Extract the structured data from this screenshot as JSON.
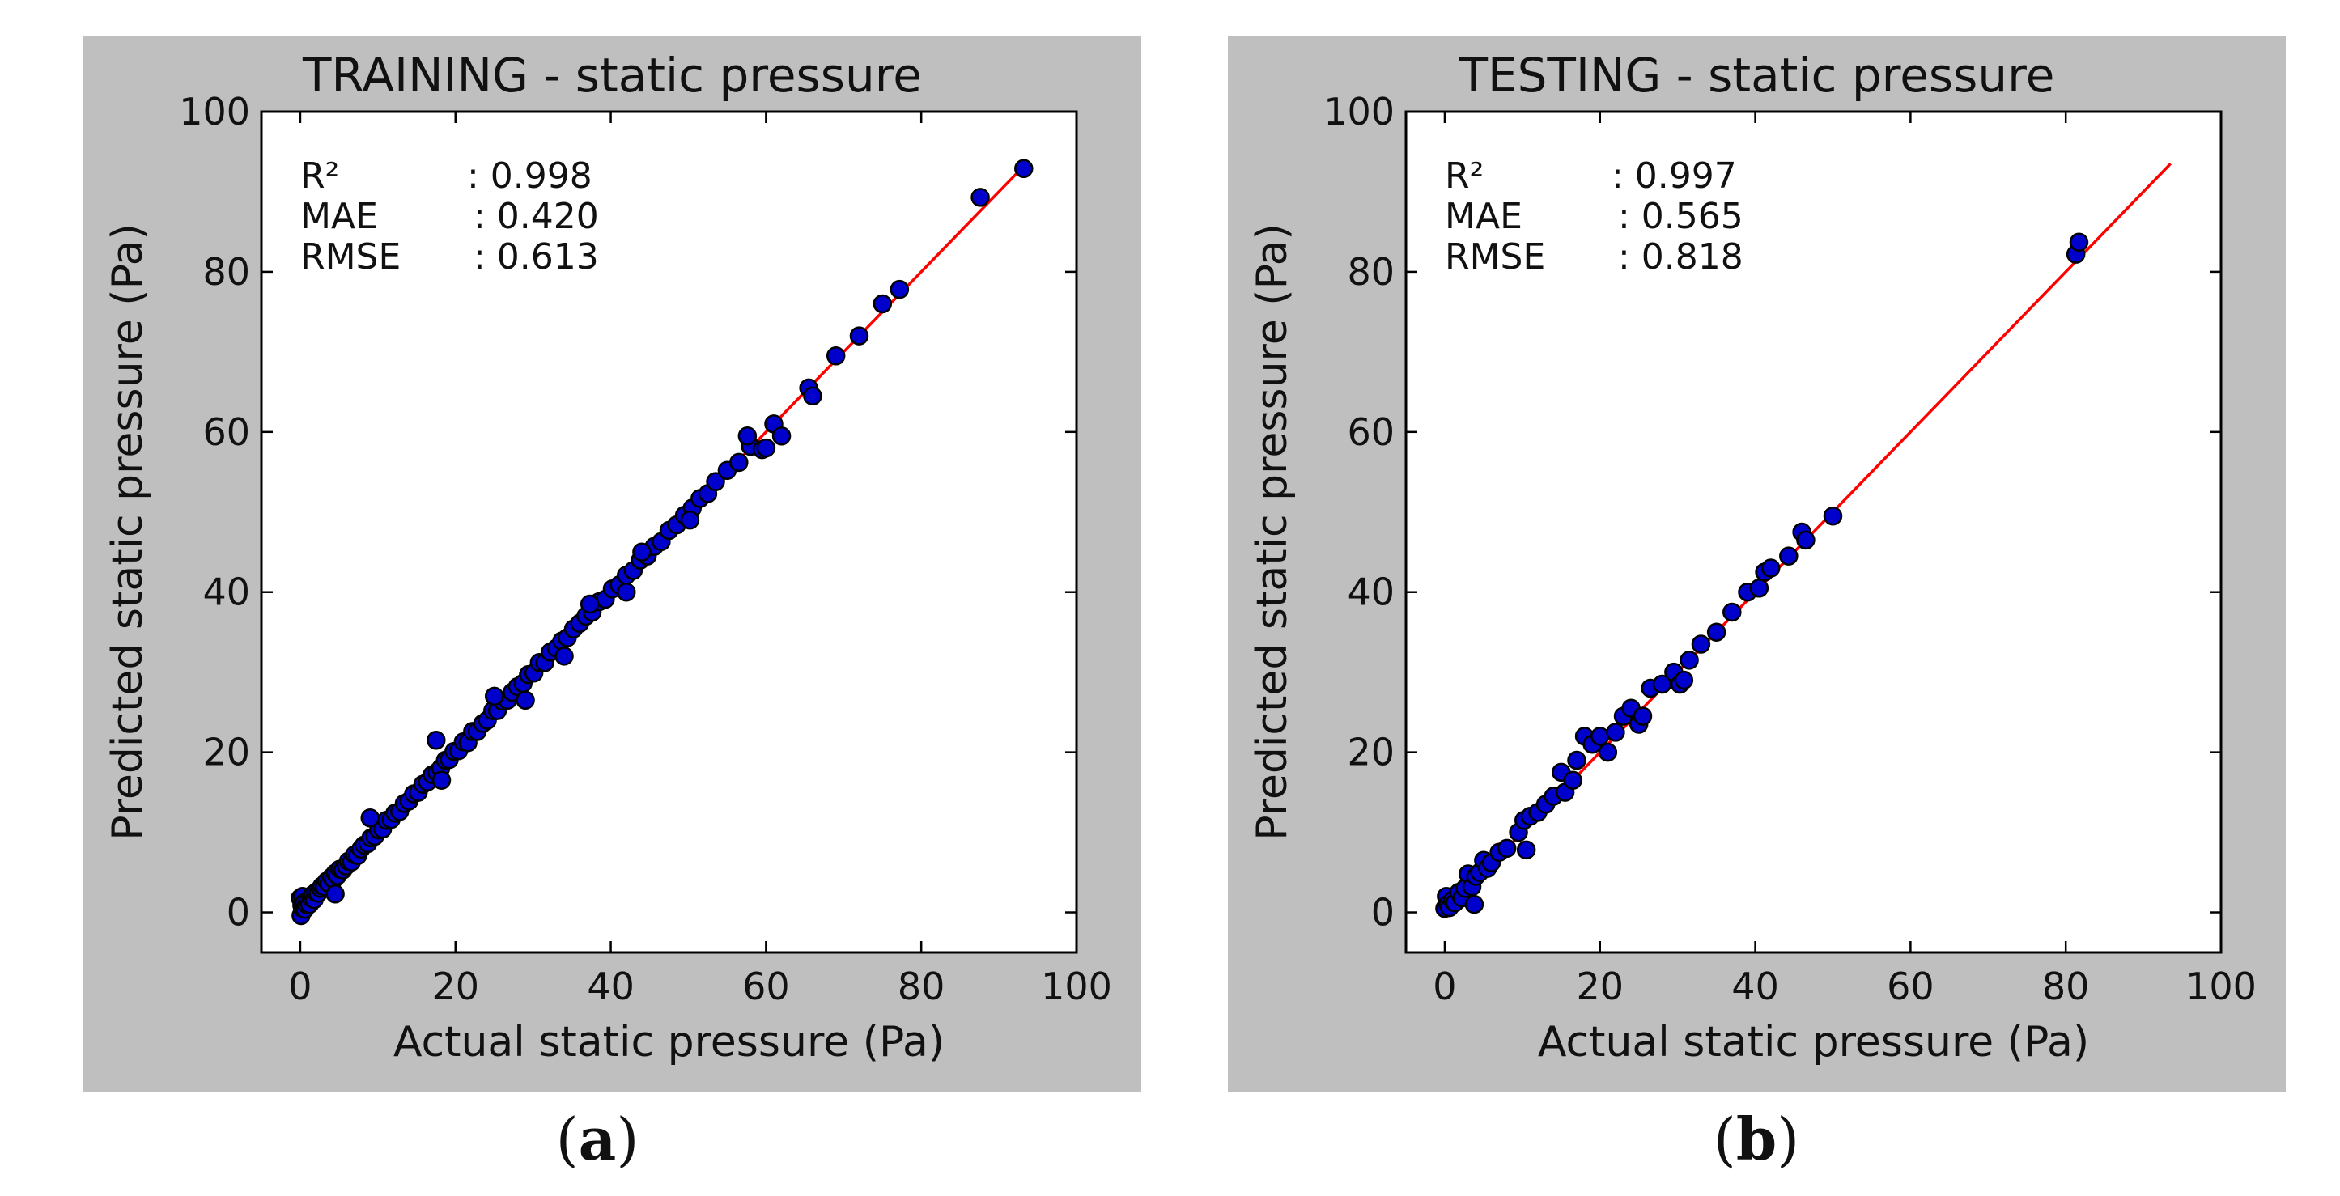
{
  "chart_data": [
    {
      "panel": "a",
      "type": "scatter",
      "title": "TRAINING - static pressure",
      "xlabel": "Actual static pressure (Pa)",
      "ylabel": "Predicted static pressure (Pa)",
      "xlim": [
        -5,
        100
      ],
      "ylim": [
        -5,
        100
      ],
      "xticks": [
        0,
        20,
        40,
        60,
        80,
        100
      ],
      "yticks": [
        0,
        20,
        40,
        60,
        80,
        100
      ],
      "grid": false,
      "fit_line": {
        "x": [
          0,
          93.2
        ],
        "y": [
          0,
          93.2
        ],
        "color": "#ff0000"
      },
      "marker_color": "#0000cc",
      "stats": [
        {
          "label": "R²",
          "value": ":  0.998"
        },
        {
          "label": "MAE",
          "value": ":  0.420"
        },
        {
          "label": "RMSE",
          "value": ":  0.613"
        }
      ],
      "points": {
        "x": [
          0.0,
          0.1,
          0.2,
          0.3,
          0.3,
          0.5,
          0.6,
          0.8,
          1.0,
          1.2,
          1.4,
          1.6,
          1.8,
          2.0,
          2.3,
          2.6,
          2.8,
          3.1,
          3.4,
          3.7,
          4.0,
          4.3,
          4.5,
          4.8,
          5.1,
          5.5,
          5.9,
          6.2,
          6.6,
          7.0,
          7.4,
          7.8,
          8.2,
          8.7,
          9.1,
          9.6,
          10.1,
          10.6,
          11.1,
          11.7,
          12.2,
          12.8,
          13.4,
          14.0,
          14.6,
          15.2,
          15.8,
          16.4,
          17.0,
          17.6,
          18.1,
          18.7,
          19.2,
          19.8,
          20.4,
          21.0,
          21.6,
          22.2,
          22.8,
          23.5,
          24.1,
          24.8,
          25.4,
          26.0,
          26.7,
          27.3,
          28.0,
          28.7,
          29.4,
          30.1,
          30.8,
          31.5,
          32.2,
          33.0,
          33.7,
          34.4,
          35.2,
          36.0,
          36.8,
          37.6,
          38.5,
          39.3,
          40.2,
          41.1,
          42.0,
          42.9,
          43.8,
          44.7,
          45.6,
          46.5,
          47.5,
          48.5,
          49.5,
          50.5,
          51.5,
          52.5,
          53.5,
          55.0,
          56.5,
          58.0,
          59.5,
          61.0,
          62.0,
          65.5,
          66.0,
          69.0,
          72.0,
          75.0,
          77.2,
          87.6,
          93.2,
          4.5,
          9.0,
          17.5,
          18.2,
          25.0,
          29.0,
          34.0,
          37.3,
          42.0,
          44.0,
          50.2,
          57.6,
          60.0
        ],
        "y": [
          1.8,
          -0.4,
          0.9,
          0.5,
          2.0,
          1.2,
          0.4,
          1.0,
          1.5,
          1.0,
          1.8,
          2.2,
          1.6,
          2.5,
          2.4,
          3.0,
          3.3,
          3.2,
          3.9,
          3.6,
          4.4,
          4.1,
          4.9,
          4.6,
          5.4,
          5.3,
          5.8,
          6.4,
          6.3,
          7.2,
          7.1,
          7.9,
          8.4,
          8.6,
          9.3,
          9.5,
          10.3,
          10.4,
          11.5,
          11.6,
          12.4,
          12.6,
          13.6,
          13.9,
          14.8,
          15.0,
          16.0,
          16.3,
          17.2,
          17.5,
          18.0,
          19.0,
          19.1,
          20.1,
          20.2,
          21.3,
          21.2,
          22.6,
          22.6,
          23.6,
          24.0,
          25.2,
          25.2,
          26.4,
          26.5,
          27.5,
          28.2,
          28.6,
          29.7,
          29.9,
          31.2,
          31.2,
          32.5,
          33.0,
          33.9,
          34.3,
          35.4,
          36.1,
          37.0,
          37.5,
          38.8,
          39.1,
          40.4,
          40.9,
          42.1,
          42.7,
          44.0,
          44.5,
          45.7,
          46.3,
          47.7,
          48.4,
          49.6,
          50.5,
          51.7,
          52.3,
          53.8,
          55.2,
          56.2,
          58.2,
          57.8,
          61.0,
          59.5,
          65.5,
          64.5,
          69.5,
          72.0,
          76.0,
          77.8,
          89.3,
          92.9,
          2.3,
          11.8,
          21.5,
          16.5,
          27.0,
          26.5,
          32.0,
          38.5,
          40.0,
          45.0,
          49.0,
          59.5,
          58.0
        ]
      }
    },
    {
      "panel": "b",
      "type": "scatter",
      "title": "TESTING - static pressure",
      "xlabel": "Actual static pressure (Pa)",
      "ylabel": "Predicted static pressure (Pa)",
      "xlim": [
        -5,
        100
      ],
      "ylim": [
        -5,
        100
      ],
      "xticks": [
        0,
        20,
        40,
        60,
        80,
        100
      ],
      "yticks": [
        0,
        20,
        40,
        60,
        80,
        100
      ],
      "grid": false,
      "fit_line": {
        "x": [
          0,
          93.5
        ],
        "y": [
          0,
          93.5
        ],
        "color": "#ff0000"
      },
      "marker_color": "#0000cc",
      "stats": [
        {
          "label": "R²",
          "value": ":  0.997"
        },
        {
          "label": "MAE",
          "value": ":  0.565"
        },
        {
          "label": "RMSE",
          "value": ":  0.818"
        }
      ],
      "points": {
        "x": [
          0.0,
          0.2,
          0.4,
          0.6,
          1.0,
          1.3,
          1.8,
          2.2,
          2.6,
          3.0,
          3.5,
          4.0,
          4.5,
          5.0,
          5.5,
          6.0,
          7.0,
          8.0,
          9.5,
          10.2,
          11.0,
          12.0,
          13.0,
          14.0,
          15.0,
          15.5,
          16.5,
          17.0,
          18.0,
          19.0,
          20.0,
          21.0,
          22.0,
          23.0,
          24.0,
          25.0,
          25.5,
          26.5,
          28.0,
          29.5,
          30.3,
          30.8,
          31.5,
          33.0,
          35.0,
          37.0,
          39.0,
          40.5,
          41.2,
          42.0,
          44.3,
          46.0,
          46.5,
          50.0,
          81.3,
          81.7,
          3.8,
          10.5
        ],
        "y": [
          0.5,
          2.0,
          1.0,
          0.6,
          1.5,
          1.2,
          2.5,
          1.8,
          3.0,
          4.8,
          3.2,
          4.5,
          5.0,
          6.5,
          5.5,
          6.2,
          7.5,
          8.0,
          10.0,
          11.5,
          12.0,
          12.5,
          13.5,
          14.5,
          17.5,
          15.0,
          16.5,
          19.0,
          22.0,
          21.0,
          22.0,
          20.0,
          22.5,
          24.5,
          25.5,
          23.5,
          24.5,
          28.0,
          28.5,
          30.0,
          28.5,
          29.0,
          31.5,
          33.5,
          35.0,
          37.5,
          40.0,
          40.5,
          42.5,
          43.0,
          44.5,
          47.5,
          46.5,
          49.5,
          82.2,
          83.7,
          1.0,
          7.8
        ]
      }
    }
  ],
  "captions": [
    {
      "open": "(",
      "letter": "a",
      "close": ")"
    },
    {
      "open": "(",
      "letter": "b",
      "close": ")"
    }
  ]
}
